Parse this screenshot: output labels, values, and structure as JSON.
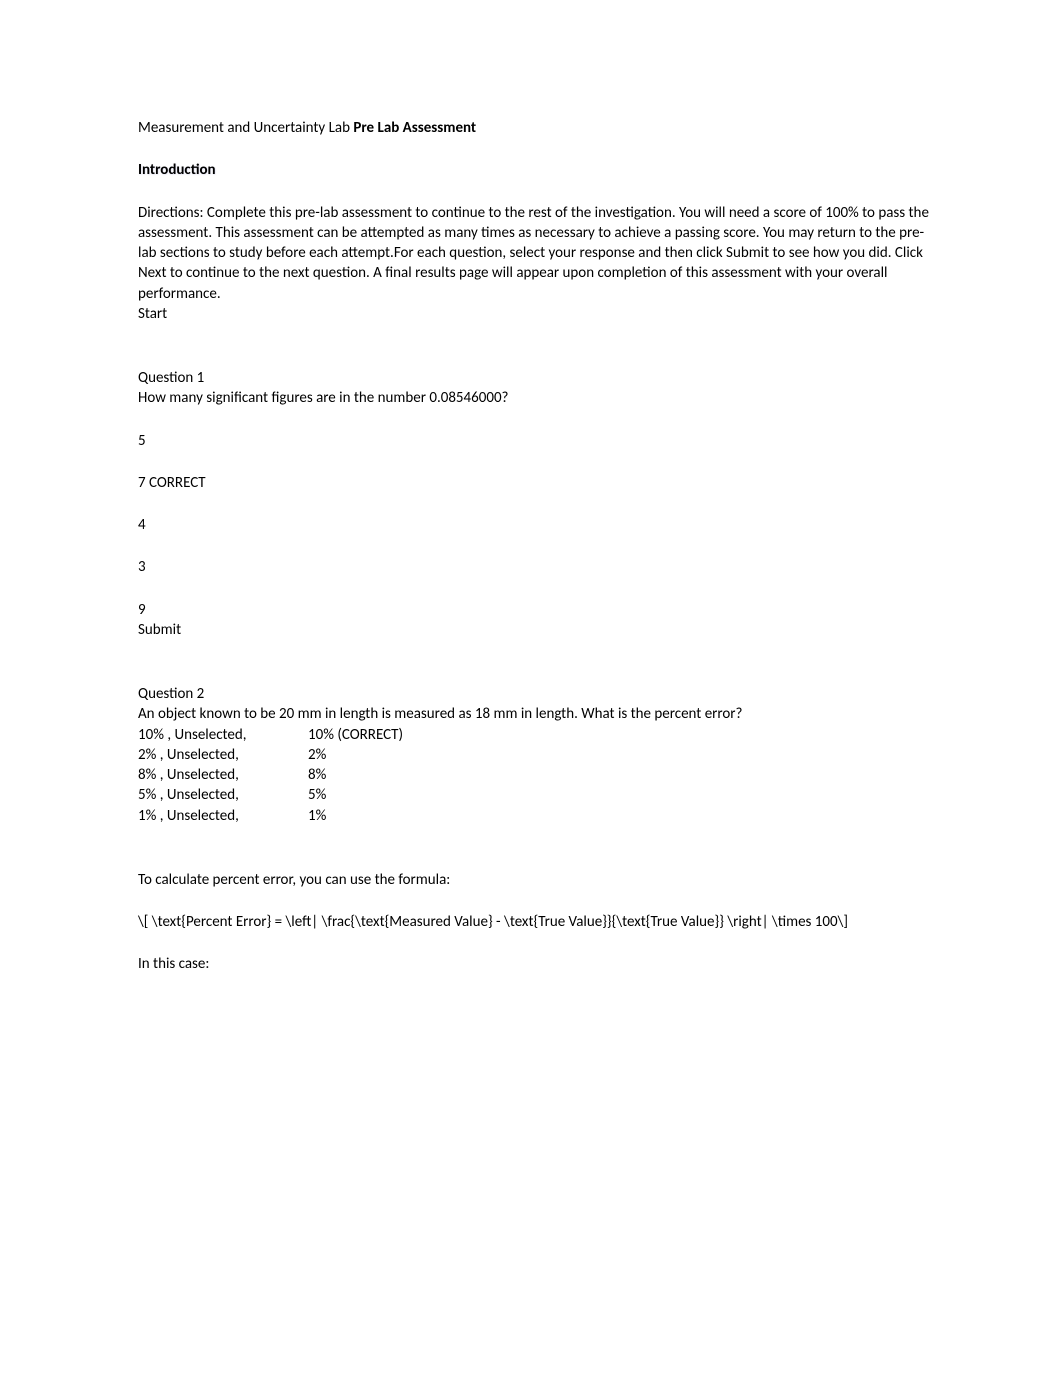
{
  "title": {
    "prefix": "Measurement and Uncertainty Lab ",
    "bold": "Pre Lab Assessment"
  },
  "introduction_heading": "Introduction",
  "directions": "Directions: Complete this pre-lab assessment to continue to the rest of the investigation. You will need a score of 100% to pass the assessment. This assessment can be attempted as many times as necessary to achieve a passing score. You may return to the pre-lab sections to study before each attempt.For each question, select your response and then click Submit to see how you did. Click Next to continue to the next question. A final results page will appear upon completion of this assessment with your overall performance.",
  "start_label": "Start",
  "q1": {
    "label": "Question 1",
    "text": "How many significant figures are in the number 0.08546000?",
    "options": [
      "5",
      "7 CORRECT",
      "4",
      "3",
      "9"
    ],
    "submit_label": "Submit"
  },
  "q2": {
    "label": "Question 2",
    "text": "An object known to be 20 mm in length is measured as 18 mm in length. What is the percent error?",
    "rows": [
      {
        "left": "10% , Unselected,",
        "right": "10% (CORRECT)"
      },
      {
        "left": "2% , Unselected,",
        "right": "2%"
      },
      {
        "left": "8% , Unselected,",
        "right": "8%"
      },
      {
        "left": "5% , Unselected,",
        "right": "5%"
      },
      {
        "left": "1% , Unselected,",
        "right": "1%"
      }
    ]
  },
  "formula_intro": "To calculate percent error, you can use the formula:",
  "formula": "\\[ \\text{Percent Error} = \\left| \\frac{\\text{Measured Value} - \\text{True Value}}{\\text{True Value}} \\right| \\times 100\\]",
  "in_this_case": "In this case:"
}
